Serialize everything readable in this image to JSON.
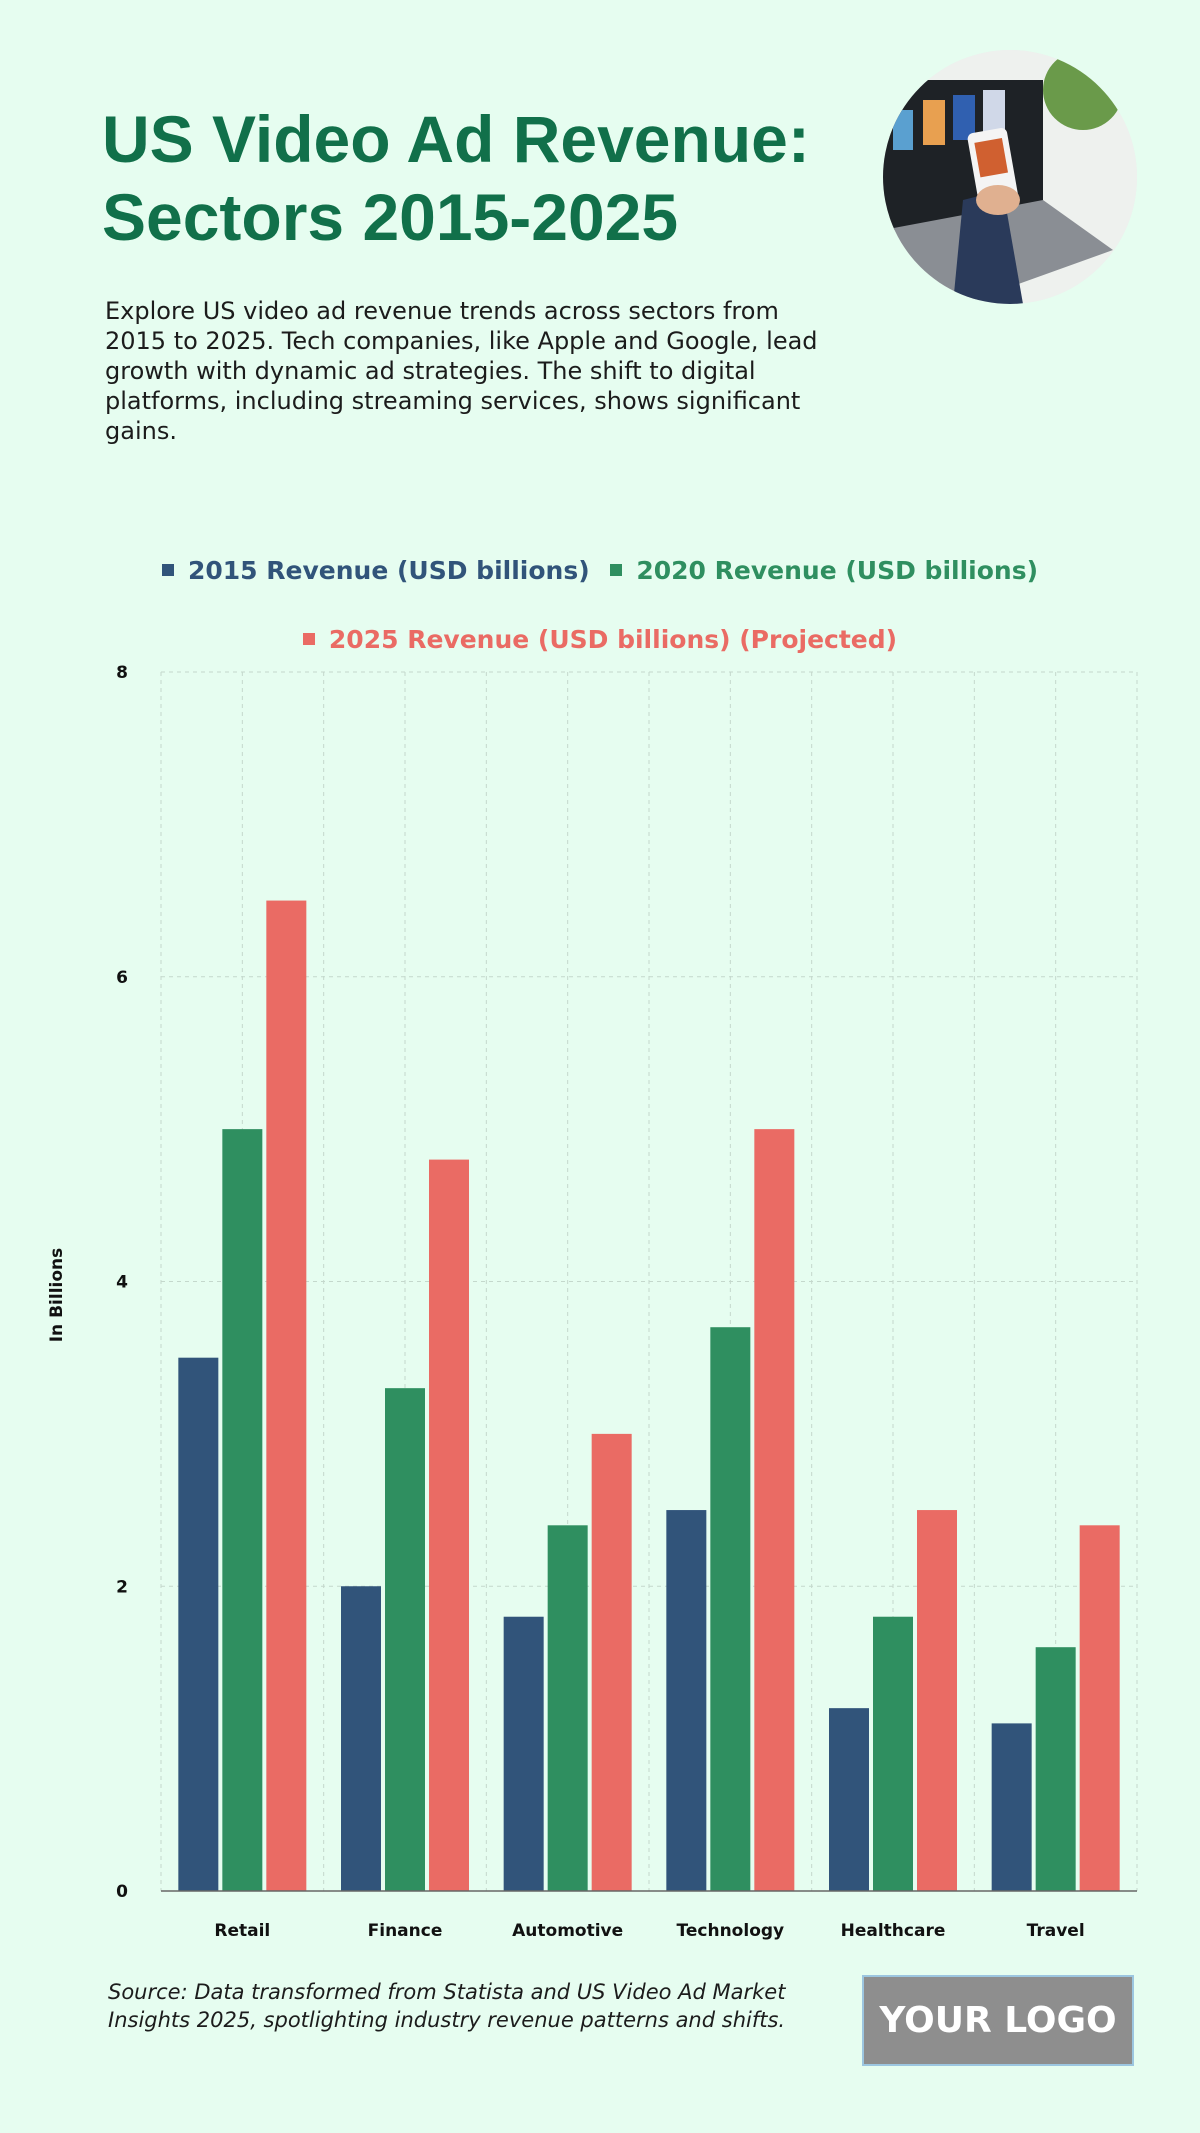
{
  "header": {
    "title": "US Video Ad Revenue: Sectors 2015-2025",
    "description": "Explore US video ad revenue trends across sectors from 2015 to 2025. Tech companies, like Apple and Google, lead growth with dynamic ad strategies. The shift to digital platforms, including streaming services, shows significant gains."
  },
  "footer": {
    "source": "Source: Data transformed from Statista and US Video Ad Market Insights 2025, spotlighting industry revenue patterns and shifts.",
    "logo": "YOUR LOGO"
  },
  "chart_data": {
    "type": "bar",
    "title": "US Video Ad Revenue: Sectors 2015-2025",
    "xlabel": "",
    "ylabel": "In Billions",
    "ylim": [
      0,
      8
    ],
    "yticks": [
      0,
      2,
      4,
      6,
      8
    ],
    "grid": true,
    "legend_position": "top-center",
    "categories": [
      "Retail",
      "Finance",
      "Automotive",
      "Technology",
      "Healthcare",
      "Travel"
    ],
    "series": [
      {
        "name": "2015 Revenue (USD billions)",
        "color": "#31547a",
        "values": [
          3.5,
          2.0,
          1.8,
          2.5,
          1.2,
          1.1
        ]
      },
      {
        "name": "2020 Revenue (USD billions)",
        "color": "#2f8f60",
        "values": [
          5.0,
          3.3,
          2.4,
          3.7,
          1.8,
          1.6
        ]
      },
      {
        "name": "2025 Revenue (USD billions) (Projected)",
        "color": "#ea6b64",
        "values": [
          6.5,
          4.8,
          3.0,
          5.0,
          2.5,
          2.4
        ]
      }
    ]
  }
}
